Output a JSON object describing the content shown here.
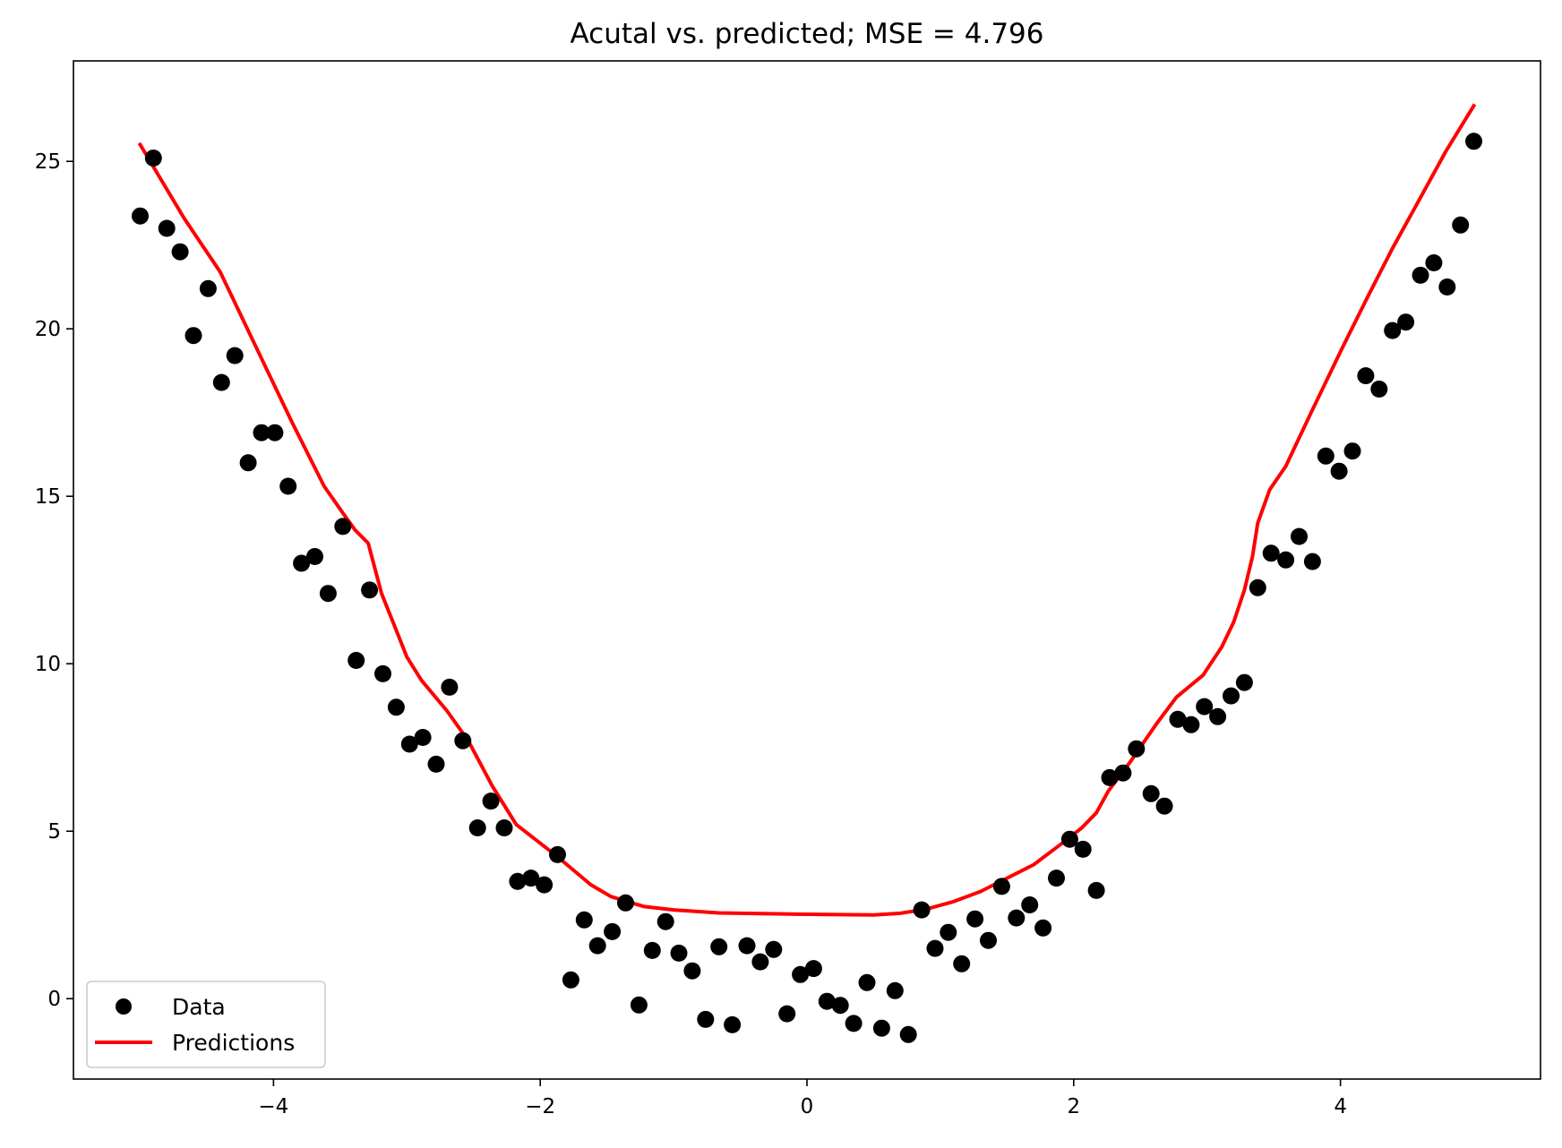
{
  "chart_data": {
    "type": "scatter",
    "title": "Acutal vs. predicted; MSE = 4.796",
    "xlabel": "",
    "ylabel": "",
    "xlim": [
      -5.5,
      5.5
    ],
    "ylim": [
      -2.4,
      28.0
    ],
    "grid": false,
    "legend_position": "lower left",
    "x_ticks": [
      -4,
      -2,
      0,
      2,
      4
    ],
    "x_tick_labels": [
      "−4",
      "−2",
      "0",
      "2",
      "4"
    ],
    "y_ticks": [
      0,
      5,
      10,
      15,
      20,
      25
    ],
    "y_tick_labels": [
      "0",
      "5",
      "10",
      "15",
      "20",
      "25"
    ],
    "series": [
      {
        "name": "Data",
        "kind": "scatter",
        "color": "#000000",
        "x": [
          -5.0,
          -4.9,
          -4.8,
          -4.7,
          -4.6,
          -4.49,
          -4.39,
          -4.29,
          -4.19,
          -4.09,
          -3.99,
          -3.89,
          -3.79,
          -3.69,
          -3.59,
          -3.48,
          -3.38,
          -3.28,
          -3.18,
          -3.08,
          -2.98,
          -2.88,
          -2.78,
          -2.68,
          -2.58,
          -2.47,
          -2.37,
          -2.27,
          -2.17,
          -2.07,
          -1.97,
          -1.87,
          -1.77,
          -1.67,
          -1.57,
          -1.46,
          -1.36,
          -1.26,
          -1.16,
          -1.06,
          -0.96,
          -0.86,
          -0.76,
          -0.66,
          -0.56,
          -0.45,
          -0.35,
          -0.25,
          -0.15,
          -0.05,
          0.05,
          0.15,
          0.25,
          0.35,
          0.45,
          0.56,
          0.66,
          0.76,
          0.86,
          0.96,
          1.06,
          1.16,
          1.26,
          1.36,
          1.46,
          1.57,
          1.67,
          1.77,
          1.87,
          1.97,
          2.07,
          2.17,
          2.27,
          2.37,
          2.47,
          2.58,
          2.68,
          2.78,
          2.88,
          2.98,
          3.08,
          3.18,
          3.28,
          3.38,
          3.48,
          3.59,
          3.69,
          3.79,
          3.89,
          3.99,
          4.09,
          4.19,
          4.29,
          4.39,
          4.49,
          4.6,
          4.7,
          4.8,
          4.9,
          5.0
        ],
        "y": [
          23.37,
          25.1,
          23.0,
          22.3,
          19.8,
          21.2,
          18.4,
          19.2,
          16.0,
          16.9,
          16.9,
          15.3,
          13.0,
          13.2,
          12.1,
          14.1,
          10.1,
          12.2,
          9.7,
          8.7,
          7.6,
          7.8,
          7.0,
          9.3,
          7.7,
          5.1,
          5.9,
          5.1,
          3.5,
          3.6,
          3.4,
          4.3,
          0.56,
          2.35,
          1.58,
          2.0,
          2.86,
          -0.19,
          1.44,
          2.3,
          1.36,
          0.83,
          -0.62,
          1.55,
          -0.78,
          1.58,
          1.1,
          1.47,
          -0.45,
          0.72,
          0.9,
          -0.08,
          -0.2,
          -0.74,
          0.48,
          -0.88,
          0.24,
          -1.07,
          2.65,
          1.5,
          1.98,
          1.04,
          2.38,
          1.74,
          3.35,
          2.41,
          2.8,
          2.11,
          3.6,
          4.76,
          4.46,
          3.23,
          6.6,
          6.74,
          7.46,
          6.12,
          5.75,
          8.34,
          8.18,
          8.72,
          8.42,
          9.04,
          9.44,
          12.27,
          13.3,
          13.1,
          13.8,
          13.05,
          16.2,
          15.75,
          16.35,
          18.6,
          18.2,
          19.95,
          20.2,
          21.6,
          21.97,
          21.25,
          23.1,
          25.6
        ]
      },
      {
        "name": "Predictions",
        "kind": "line",
        "color": "#ff0000",
        "x": [
          -5.0,
          -4.67,
          -4.4,
          -4.13,
          -3.86,
          -3.62,
          -3.48,
          -3.39,
          -3.29,
          -3.19,
          -3.08,
          -3.0,
          -2.89,
          -2.7,
          -2.54,
          -2.36,
          -2.18,
          -1.89,
          -1.62,
          -1.47,
          -1.22,
          -1.0,
          -0.66,
          0.0,
          0.5,
          0.7,
          0.89,
          1.1,
          1.3,
          1.5,
          1.7,
          1.9,
          2.06,
          2.17,
          2.26,
          2.42,
          2.62,
          2.77,
          2.97,
          3.11,
          3.2,
          3.28,
          3.34,
          3.38,
          3.47,
          3.59,
          3.78,
          4.01,
          4.21,
          4.39,
          4.57,
          4.79,
          5.0
        ],
        "y": [
          25.5,
          23.3,
          21.7,
          19.45,
          17.2,
          15.3,
          14.5,
          14.0,
          13.6,
          12.1,
          11.0,
          10.2,
          9.5,
          8.6,
          7.7,
          6.35,
          5.2,
          4.3,
          3.4,
          3.05,
          2.75,
          2.65,
          2.56,
          2.52,
          2.5,
          2.55,
          2.67,
          2.9,
          3.2,
          3.6,
          4.0,
          4.6,
          5.1,
          5.55,
          6.2,
          7.05,
          8.2,
          9.0,
          9.66,
          10.5,
          11.25,
          12.2,
          13.2,
          14.2,
          15.2,
          15.9,
          17.5,
          19.4,
          21.0,
          22.4,
          23.7,
          25.3,
          26.66
        ]
      }
    ]
  },
  "legend": {
    "items": [
      {
        "label": "Data",
        "marker": "circle",
        "color": "#000000"
      },
      {
        "label": "Predictions",
        "marker": "line",
        "color": "#ff0000"
      }
    ]
  },
  "colors": {
    "data": "#000000",
    "predictions": "#ff0000",
    "axes": "#000000",
    "legend_border": "#cccccc",
    "background": "#ffffff"
  }
}
